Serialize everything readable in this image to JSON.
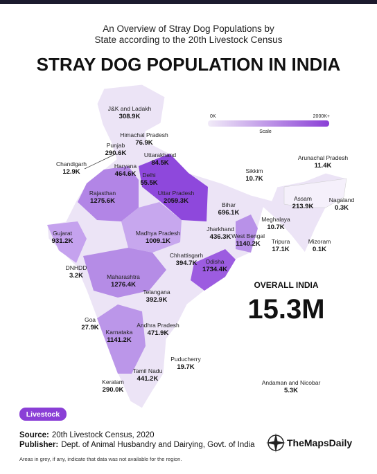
{
  "header": {
    "subtitle": "An Overview of Stray Dog Populations by State according to the 20th Livestock Census",
    "title": "STRAY DOG POPULATION IN INDIA"
  },
  "scale": {
    "min_label": "0K",
    "max_label": "2000K+",
    "label": "Scale"
  },
  "overall": {
    "label": "OVERALL INDIA",
    "value": "15.3M"
  },
  "regions": [
    {
      "name": "J&K and Ladakh",
      "value": "308.9K"
    },
    {
      "name": "Himachal Pradesh",
      "value": "76.9K"
    },
    {
      "name": "Punjab",
      "value": "290.6K"
    },
    {
      "name": "Chandigarh",
      "value": "12.9K"
    },
    {
      "name": "Haryana",
      "value": "464.6K"
    },
    {
      "name": "Uttarakhand",
      "value": "84.5K"
    },
    {
      "name": "Delhi",
      "value": "55.5K"
    },
    {
      "name": "Uttar Pradesh",
      "value": "2059.3K"
    },
    {
      "name": "Rajasthan",
      "value": "1275.6K"
    },
    {
      "name": "Bihar",
      "value": "696.1K"
    },
    {
      "name": "Sikkim",
      "value": "10.7K"
    },
    {
      "name": "Arunachal Pradesh",
      "value": "11.4K"
    },
    {
      "name": "Assam",
      "value": "213.9K"
    },
    {
      "name": "Nagaland",
      "value": "0.3K"
    },
    {
      "name": "Meghalaya",
      "value": "10.7K"
    },
    {
      "name": "Gujarat",
      "value": "931.2K"
    },
    {
      "name": "Madhya Pradesh",
      "value": "1009.1K"
    },
    {
      "name": "Jharkhand",
      "value": "436.3K"
    },
    {
      "name": "West Bengal",
      "value": "1140.2K"
    },
    {
      "name": "Tripura",
      "value": "17.1K"
    },
    {
      "name": "Mizoram",
      "value": "0.1K"
    },
    {
      "name": "DNHDD",
      "value": "3.2K"
    },
    {
      "name": "Chhattisgarh",
      "value": "394.7K"
    },
    {
      "name": "Odisha",
      "value": "1734.4K"
    },
    {
      "name": "Maharashtra",
      "value": "1276.4K"
    },
    {
      "name": "Telangana",
      "value": "392.9K"
    },
    {
      "name": "Goa",
      "value": "27.9K"
    },
    {
      "name": "Andhra Pradesh",
      "value": "471.9K"
    },
    {
      "name": "Karnataka",
      "value": "1141.2K"
    },
    {
      "name": "Puducherry",
      "value": "19.7K"
    },
    {
      "name": "Tamil Nadu",
      "value": "441.2K"
    },
    {
      "name": "Keralam",
      "value": "290.0K"
    },
    {
      "name": "Andaman and Nicobar",
      "value": "5.3K"
    }
  ],
  "badge": "Livestock",
  "footer": {
    "source_label": "Source:",
    "source": "20th Livestock Census, 2020",
    "publisher_label": "Publisher:",
    "publisher": "Dept. of Animal Husbandry and Dairying, Govt. of India",
    "note": "Areas in grey, if any, indicate that data was not available for the region.",
    "brand": "TheMapsDaily"
  }
}
